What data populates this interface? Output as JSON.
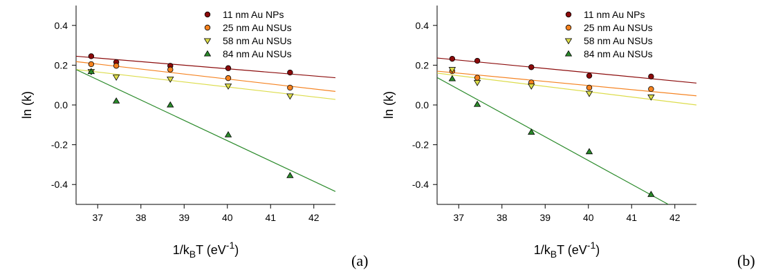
{
  "chart_data": [
    {
      "type": "scatter",
      "panel_label": "(a)",
      "xlabel": "1/kBT (eV-1)",
      "xlabel_parts": {
        "main": "1/k",
        "sub": "B",
        "mid": "T (eV",
        "sup": "-1",
        "end": ")"
      },
      "ylabel": "ln (k)",
      "xlim": [
        36.5,
        42.5
      ],
      "ylim": [
        -0.5,
        0.5
      ],
      "xticks": [
        "37",
        "38",
        "39",
        "40",
        "41",
        "42"
      ],
      "yticks": [
        "-0.4",
        "-0.2",
        "0.0",
        "0.2",
        "0.4"
      ],
      "xtick_values": [
        37,
        38,
        39,
        40,
        41,
        42
      ],
      "ytick_values": [
        -0.4,
        -0.2,
        0.0,
        0.2,
        0.4
      ],
      "grid": false,
      "legend_position": "top-right",
      "series": [
        {
          "name": "11 nm Au NPs",
          "marker": "circle",
          "color": "#8b0a0a",
          "x": [
            36.85,
            37.43,
            38.68,
            40.02,
            41.45
          ],
          "y": [
            0.245,
            0.215,
            0.197,
            0.185,
            0.163
          ],
          "fit": [
            [
              36.5,
              0.245
            ],
            [
              42.5,
              0.137
            ]
          ]
        },
        {
          "name": "25 nm Au NSUs",
          "marker": "circle",
          "color": "#f5821f",
          "x": [
            36.85,
            37.43,
            38.68,
            40.02,
            41.45
          ],
          "y": [
            0.205,
            0.197,
            0.178,
            0.135,
            0.087
          ],
          "fit": [
            [
              36.5,
              0.218
            ],
            [
              42.5,
              0.068
            ]
          ]
        },
        {
          "name": "58 nm Au NSUs",
          "marker": "triangle-down",
          "color": "#dcdc4a",
          "x": [
            36.85,
            37.43,
            38.68,
            40.02,
            41.45
          ],
          "y": [
            0.168,
            0.14,
            0.13,
            0.095,
            0.045
          ],
          "fit": [
            [
              36.5,
              0.178
            ],
            [
              42.5,
              0.028
            ]
          ]
        },
        {
          "name": "84 nm Au NSUs",
          "marker": "triangle-up",
          "color": "#2a8a2a",
          "x": [
            36.85,
            37.43,
            38.68,
            40.02,
            41.45
          ],
          "y": [
            0.168,
            0.02,
            0.0,
            -0.15,
            -0.355
          ],
          "fit": [
            [
              36.5,
              0.178
            ],
            [
              42.5,
              -0.435
            ]
          ]
        }
      ]
    },
    {
      "type": "scatter",
      "panel_label": "(b)",
      "xlabel": "1/kBT (eV-1)",
      "xlabel_parts": {
        "main": "1/k",
        "sub": "B",
        "mid": "T (eV",
        "sup": "-1",
        "end": ")"
      },
      "ylabel": "ln (k)",
      "xlim": [
        36.5,
        42.5
      ],
      "ylim": [
        -0.5,
        0.5
      ],
      "xticks": [
        "37",
        "38",
        "39",
        "40",
        "41",
        "42"
      ],
      "yticks": [
        "-0.4",
        "-0.2",
        "0.0",
        "0.2",
        "0.4"
      ],
      "xtick_values": [
        37,
        38,
        39,
        40,
        41,
        42
      ],
      "ytick_values": [
        -0.4,
        -0.2,
        0.0,
        0.2,
        0.4
      ],
      "grid": false,
      "legend_position": "top-right",
      "series": [
        {
          "name": "11 nm Au NPs",
          "marker": "circle",
          "color": "#8b0a0a",
          "x": [
            36.85,
            37.43,
            38.68,
            40.02,
            41.45
          ],
          "y": [
            0.232,
            0.222,
            0.19,
            0.147,
            0.143
          ],
          "fit": [
            [
              36.5,
              0.236
            ],
            [
              42.5,
              0.11
            ]
          ]
        },
        {
          "name": "25 nm Au NSUs",
          "marker": "circle",
          "color": "#f5821f",
          "x": [
            36.85,
            37.43,
            38.68,
            40.02,
            41.45
          ],
          "y": [
            0.17,
            0.137,
            0.113,
            0.087,
            0.08
          ],
          "fit": [
            [
              36.5,
              0.17
            ],
            [
              42.5,
              0.046
            ]
          ]
        },
        {
          "name": "58 nm Au NSUs",
          "marker": "triangle-down",
          "color": "#dcdc4a",
          "x": [
            36.85,
            37.43,
            38.68,
            40.02,
            41.45
          ],
          "y": [
            0.178,
            0.113,
            0.095,
            0.058,
            0.04
          ],
          "fit": [
            [
              36.5,
              0.16
            ],
            [
              42.5,
              0.0
            ]
          ]
        },
        {
          "name": "84 nm Au NSUs",
          "marker": "triangle-up",
          "color": "#2a8a2a",
          "x": [
            36.85,
            37.43,
            38.68,
            40.02,
            41.45
          ],
          "y": [
            0.132,
            0.003,
            -0.137,
            -0.235,
            -0.45
          ],
          "fit": [
            [
              36.5,
              0.138
            ],
            [
              41.85,
              -0.5
            ]
          ]
        }
      ]
    }
  ]
}
